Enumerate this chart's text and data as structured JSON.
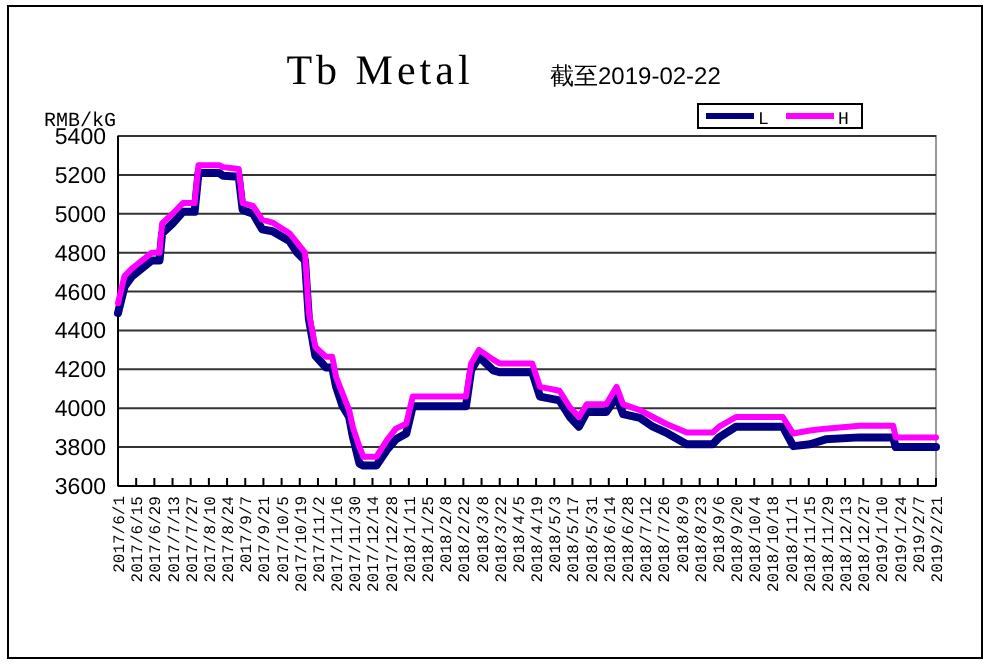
{
  "chart_data": {
    "type": "line",
    "title": "Tb Metal",
    "subtitle": "截至2019-02-22",
    "ylabel": "RMB/kG",
    "x": [
      "2017-06-01",
      "2017-06-06",
      "2017-06-12",
      "2017-06-27",
      "2017-07-03",
      "2017-07-05",
      "2017-07-13",
      "2017-07-21",
      "2017-07-30",
      "2017-08-02",
      "2017-08-18",
      "2017-08-21",
      "2017-09-02",
      "2017-09-05",
      "2017-09-13",
      "2017-09-20",
      "2017-09-28",
      "2017-10-11",
      "2017-10-17",
      "2017-10-23",
      "2017-10-26",
      "2017-10-31",
      "2017-11-08",
      "2017-11-13",
      "2017-11-16",
      "2017-11-21",
      "2017-11-26",
      "2017-11-29",
      "2017-12-04",
      "2017-12-07",
      "2017-12-17",
      "2017-12-25",
      "2018-01-01",
      "2018-01-09",
      "2018-01-14",
      "2018-02-24",
      "2018-02-28",
      "2018-03-06",
      "2018-03-17",
      "2018-03-22",
      "2018-04-16",
      "2018-04-22",
      "2018-05-07",
      "2018-05-15",
      "2018-05-22",
      "2018-05-28",
      "2018-06-12",
      "2018-06-20",
      "2018-06-25",
      "2018-07-08",
      "2018-07-18",
      "2018-07-28",
      "2018-08-13",
      "2018-09-02",
      "2018-09-07",
      "2018-09-20",
      "2018-10-26",
      "2018-11-03",
      "2018-11-16",
      "2018-11-28",
      "2018-12-24",
      "2019-01-19",
      "2019-01-21",
      "2019-02-21"
    ],
    "series": [
      {
        "name": "L",
        "color": "#000080",
        "values": [
          4490,
          4625,
          4680,
          4760,
          4760,
          4900,
          4950,
          5010,
          5010,
          5210,
          5210,
          5195,
          5190,
          5020,
          5000,
          4920,
          4910,
          4860,
          4800,
          4760,
          4460,
          4270,
          4210,
          4210,
          4110,
          4010,
          3955,
          3850,
          3715,
          3705,
          3705,
          3785,
          3840,
          3870,
          4010,
          4010,
          4195,
          4265,
          4195,
          4185,
          4185,
          4060,
          4040,
          3955,
          3905,
          3980,
          3980,
          4060,
          3970,
          3950,
          3905,
          3875,
          3815,
          3815,
          3850,
          3905,
          3905,
          3805,
          3815,
          3840,
          3850,
          3850,
          3800,
          3800
        ]
      },
      {
        "name": "H",
        "color": "#ff00ff",
        "values": [
          4540,
          4680,
          4720,
          4800,
          4800,
          4950,
          5000,
          5055,
          5055,
          5250,
          5250,
          5240,
          5230,
          5055,
          5040,
          4970,
          4955,
          4900,
          4850,
          4800,
          4490,
          4315,
          4265,
          4265,
          4160,
          4075,
          3990,
          3900,
          3800,
          3750,
          3750,
          3835,
          3895,
          3920,
          4060,
          4060,
          4230,
          4300,
          4250,
          4230,
          4230,
          4110,
          4090,
          4005,
          3955,
          4020,
          4020,
          4110,
          4020,
          3990,
          3955,
          3920,
          3875,
          3875,
          3905,
          3955,
          3955,
          3870,
          3885,
          3895,
          3910,
          3910,
          3850,
          3850
        ]
      }
    ],
    "xlim": [
      "2017-06-01",
      "2019-02-21"
    ],
    "xticks": [
      {
        "value": "2017-06-01",
        "label": "2017/6/1"
      },
      {
        "value": "2017-06-15",
        "label": "2017/6/15"
      },
      {
        "value": "2017-06-29",
        "label": "2017/6/29"
      },
      {
        "value": "2017-07-13",
        "label": "2017/7/13"
      },
      {
        "value": "2017-07-27",
        "label": "2017/7/27"
      },
      {
        "value": "2017-08-10",
        "label": "2017/8/10"
      },
      {
        "value": "2017-08-24",
        "label": "2017/8/24"
      },
      {
        "value": "2017-09-07",
        "label": "2017/9/7"
      },
      {
        "value": "2017-09-21",
        "label": "2017/9/21"
      },
      {
        "value": "2017-10-05",
        "label": "2017/10/5"
      },
      {
        "value": "2017-10-19",
        "label": "2017/10/19"
      },
      {
        "value": "2017-11-02",
        "label": "2017/11/2"
      },
      {
        "value": "2017-11-16",
        "label": "2017/11/16"
      },
      {
        "value": "2017-11-30",
        "label": "2017/11/30"
      },
      {
        "value": "2017-12-14",
        "label": "2017/12/14"
      },
      {
        "value": "2017-12-28",
        "label": "2017/12/28"
      },
      {
        "value": "2018-01-11",
        "label": "2018/1/11"
      },
      {
        "value": "2018-01-25",
        "label": "2018/1/25"
      },
      {
        "value": "2018-02-08",
        "label": "2018/2/8"
      },
      {
        "value": "2018-02-22",
        "label": "2018/2/22"
      },
      {
        "value": "2018-03-08",
        "label": "2018/3/8"
      },
      {
        "value": "2018-03-22",
        "label": "2018/3/22"
      },
      {
        "value": "2018-04-05",
        "label": "2018/4/5"
      },
      {
        "value": "2018-04-19",
        "label": "2018/4/19"
      },
      {
        "value": "2018-05-03",
        "label": "2018/5/3"
      },
      {
        "value": "2018-05-17",
        "label": "2018/5/17"
      },
      {
        "value": "2018-05-31",
        "label": "2018/5/31"
      },
      {
        "value": "2018-06-14",
        "label": "2018/6/14"
      },
      {
        "value": "2018-06-28",
        "label": "2018/6/28"
      },
      {
        "value": "2018-07-12",
        "label": "2018/7/12"
      },
      {
        "value": "2018-07-26",
        "label": "2018/7/26"
      },
      {
        "value": "2018-08-09",
        "label": "2018/8/9"
      },
      {
        "value": "2018-08-23",
        "label": "2018/8/23"
      },
      {
        "value": "2018-09-06",
        "label": "2018/9/6"
      },
      {
        "value": "2018-09-20",
        "label": "2018/9/20"
      },
      {
        "value": "2018-10-04",
        "label": "2018/10/4"
      },
      {
        "value": "2018-10-18",
        "label": "2018/10/18"
      },
      {
        "value": "2018-11-01",
        "label": "2018/11/1"
      },
      {
        "value": "2018-11-15",
        "label": "2018/11/15"
      },
      {
        "value": "2018-11-29",
        "label": "2018/11/29"
      },
      {
        "value": "2018-12-13",
        "label": "2018/12/13"
      },
      {
        "value": "2018-12-27",
        "label": "2018/12/27"
      },
      {
        "value": "2019-01-10",
        "label": "2019/1/10"
      },
      {
        "value": "2019-01-24",
        "label": "2019/1/24"
      },
      {
        "value": "2019-02-07",
        "label": "2019/2/7"
      },
      {
        "value": "2019-02-21",
        "label": "2019/2/21"
      }
    ],
    "ylim": [
      3600,
      5400
    ],
    "yticks": [
      3600,
      3800,
      4000,
      4200,
      4400,
      4600,
      4800,
      5000,
      5200,
      5400
    ],
    "grid": "y",
    "legend": "top right",
    "marker": "none",
    "line_style": "solid"
  }
}
